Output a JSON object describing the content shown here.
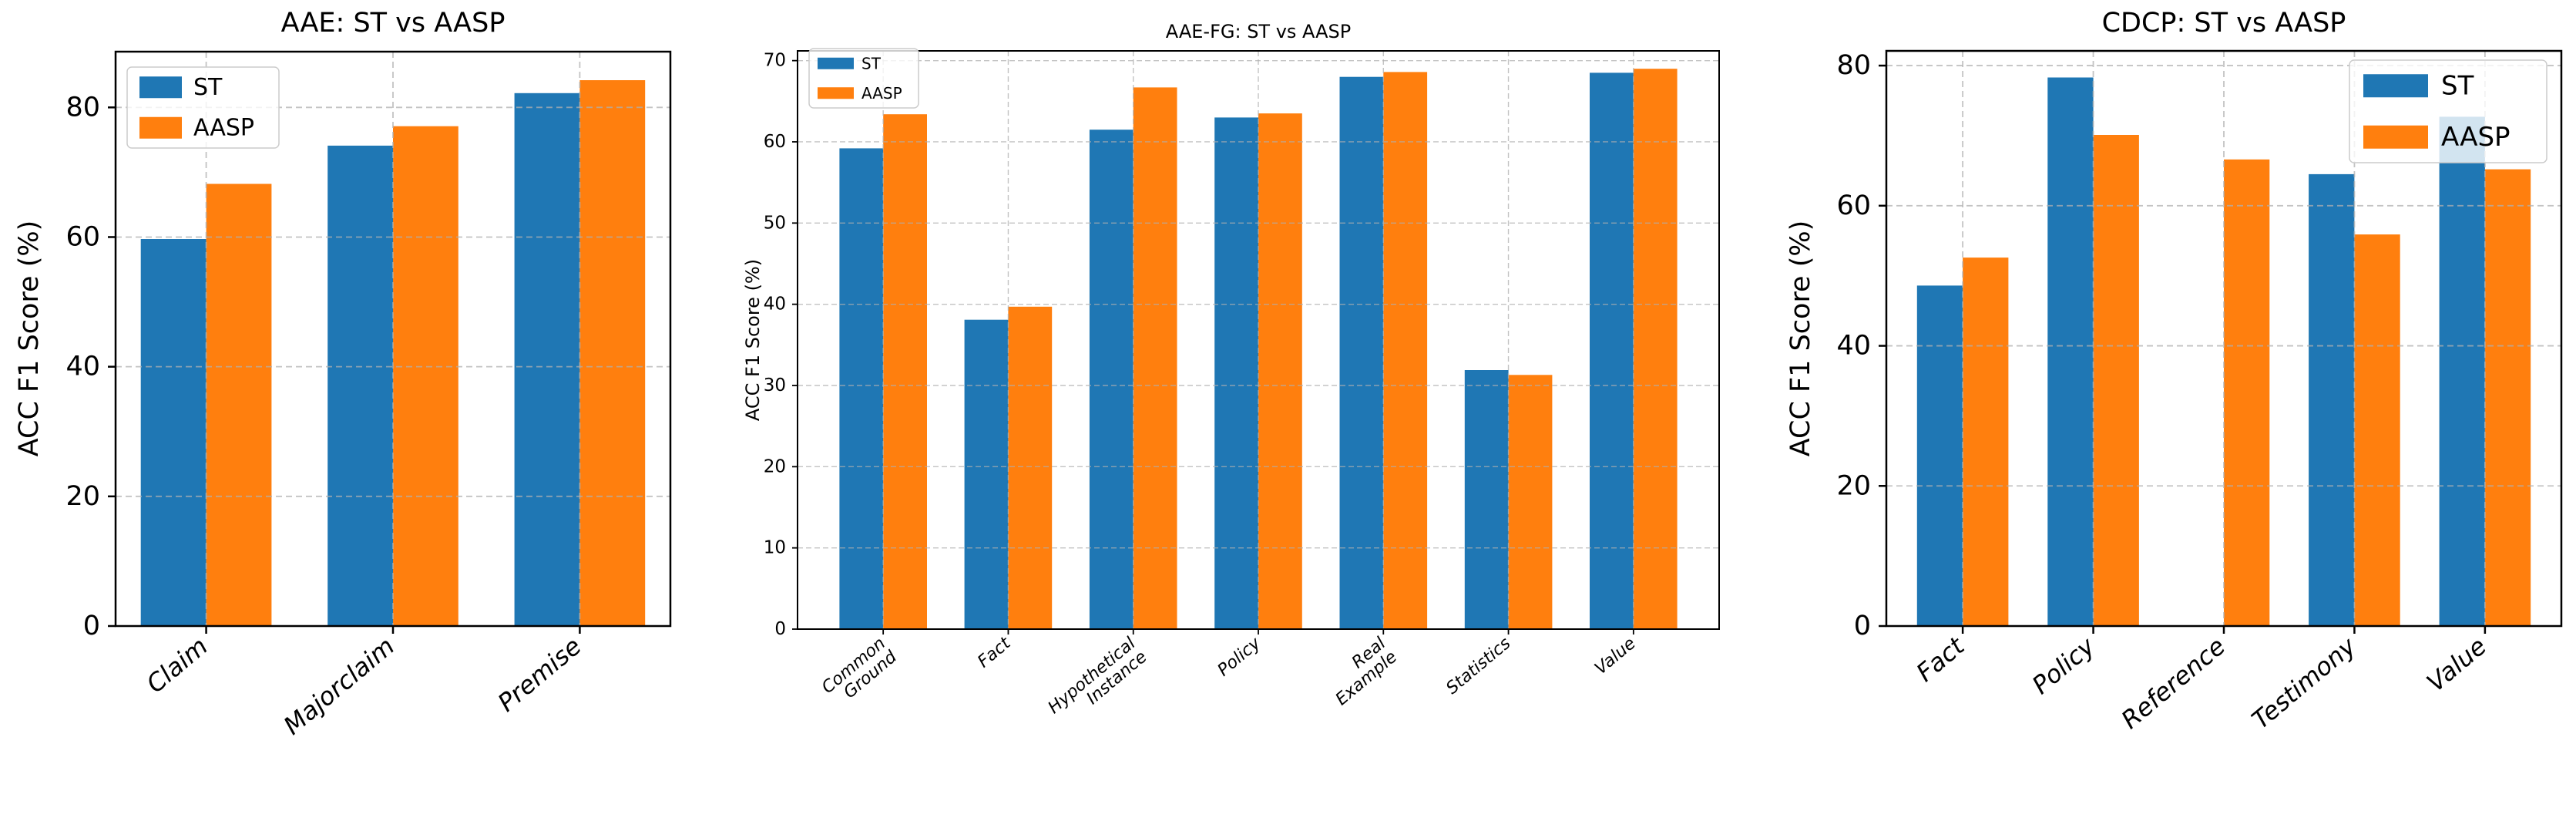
{
  "figure": {
    "background": "#ffffff"
  },
  "colors": {
    "st": "#1f77b4",
    "aasp": "#ff7f0e",
    "grid": "#b0b0b0",
    "axis": "#000000",
    "text": "#000000",
    "legend_border": "#cccccc",
    "legend_fill": "#ffffff"
  },
  "chart_data": [
    {
      "id": "aae",
      "type": "bar",
      "title": "AAE: ST vs AASP",
      "ylabel": "ACC F1 Score (%)",
      "categories": [
        "Claim",
        "Majorclaim",
        "Premise"
      ],
      "series": [
        {
          "name": "ST",
          "values": [
            59.7,
            74.1,
            82.2
          ]
        },
        {
          "name": "AASP",
          "values": [
            68.2,
            77.1,
            84.2
          ]
        }
      ],
      "ylim": [
        0,
        88.6
      ],
      "yticks": [
        0,
        20,
        40,
        60,
        80
      ],
      "grid": true,
      "legend_position": "upper left"
    },
    {
      "id": "aae-fg",
      "type": "bar",
      "title": "AAE-FG: ST vs AASP",
      "ylabel": "ACC F1 Score (%)",
      "categories": [
        "Common\nGround",
        "Fact",
        "Hypothetical\nInstance",
        "Policy",
        "Real\nExample",
        "Statistics",
        "Value"
      ],
      "series": [
        {
          "name": "ST",
          "values": [
            59.2,
            38.1,
            61.5,
            63.0,
            68.0,
            31.9,
            68.5
          ]
        },
        {
          "name": "AASP",
          "values": [
            63.4,
            39.7,
            66.7,
            63.5,
            68.6,
            31.3,
            69.0
          ]
        }
      ],
      "ylim": [
        0,
        71.2
      ],
      "yticks": [
        0,
        10,
        20,
        30,
        40,
        50,
        60,
        70
      ],
      "grid": true,
      "legend_position": "upper left"
    },
    {
      "id": "cdcp",
      "type": "bar",
      "title": "CDCP: ST vs AASP",
      "ylabel": "ACC F1 Score (%)",
      "categories": [
        "Fact",
        "Policy",
        "Reference",
        "Testimony",
        "Value"
      ],
      "series": [
        {
          "name": "ST",
          "values": [
            48.6,
            78.3,
            0.0,
            64.5,
            72.7
          ]
        },
        {
          "name": "AASP",
          "values": [
            52.6,
            70.1,
            66.6,
            55.9,
            65.2
          ]
        }
      ],
      "ylim": [
        0,
        82.1
      ],
      "yticks": [
        0,
        20,
        40,
        60,
        80
      ],
      "grid": true,
      "legend_position": "upper right"
    }
  ]
}
